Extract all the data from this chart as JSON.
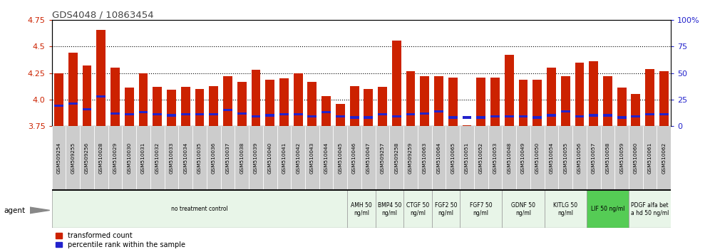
{
  "title": "GDS4048 / 10863454",
  "samples": [
    "GSM509254",
    "GSM509255",
    "GSM509256",
    "GSM510028",
    "GSM510029",
    "GSM510030",
    "GSM510031",
    "GSM510032",
    "GSM510033",
    "GSM510034",
    "GSM510035",
    "GSM510036",
    "GSM510037",
    "GSM510038",
    "GSM510039",
    "GSM510040",
    "GSM510041",
    "GSM510042",
    "GSM510043",
    "GSM510044",
    "GSM510045",
    "GSM510046",
    "GSM510047",
    "GSM509257",
    "GSM509258",
    "GSM509259",
    "GSM510063",
    "GSM510064",
    "GSM510065",
    "GSM510051",
    "GSM510052",
    "GSM510053",
    "GSM510048",
    "GSM510049",
    "GSM510050",
    "GSM510054",
    "GSM510055",
    "GSM510056",
    "GSM510057",
    "GSM510058",
    "GSM510059",
    "GSM510060",
    "GSM510061",
    "GSM510062"
  ],
  "bar_values": [
    4.25,
    4.44,
    4.32,
    4.66,
    4.3,
    4.11,
    4.25,
    4.12,
    4.09,
    4.12,
    4.1,
    4.13,
    4.22,
    4.17,
    4.28,
    4.19,
    4.2,
    4.25,
    4.17,
    4.03,
    3.96,
    4.13,
    4.1,
    4.12,
    4.56,
    4.27,
    4.22,
    4.22,
    4.21,
    3.76,
    4.21,
    4.21,
    4.42,
    4.19,
    4.19,
    4.3,
    4.22,
    4.35,
    4.36,
    4.22,
    4.11,
    4.05,
    4.29,
    4.27
  ],
  "percentile_values": [
    3.94,
    3.96,
    3.91,
    4.03,
    3.87,
    3.86,
    3.88,
    3.86,
    3.85,
    3.86,
    3.86,
    3.86,
    3.9,
    3.87,
    3.84,
    3.85,
    3.86,
    3.86,
    3.84,
    3.88,
    3.84,
    3.83,
    3.83,
    3.86,
    3.84,
    3.86,
    3.87,
    3.89,
    3.83,
    3.83,
    3.83,
    3.84,
    3.84,
    3.84,
    3.83,
    3.85,
    3.89,
    3.84,
    3.85,
    3.85,
    3.83,
    3.84,
    3.86,
    3.86
  ],
  "ymin": 3.75,
  "ymax": 4.75,
  "yticks_left": [
    3.75,
    4.0,
    4.25,
    4.5,
    4.75
  ],
  "right_yticks": [
    0,
    25,
    50,
    75,
    100
  ],
  "bar_color": "#cc2200",
  "percentile_color": "#2222cc",
  "bar_width": 0.65,
  "agent_groups": [
    {
      "label": "no treatment control",
      "start": 0,
      "end": 21,
      "bg": "#e8f5e8"
    },
    {
      "label": "AMH 50\nng/ml",
      "start": 21,
      "end": 23,
      "bg": "#e8f5e8"
    },
    {
      "label": "BMP4 50\nng/ml",
      "start": 23,
      "end": 25,
      "bg": "#e8f5e8"
    },
    {
      "label": "CTGF 50\nng/ml",
      "start": 25,
      "end": 27,
      "bg": "#e8f5e8"
    },
    {
      "label": "FGF2 50\nng/ml",
      "start": 27,
      "end": 29,
      "bg": "#e8f5e8"
    },
    {
      "label": "FGF7 50\nng/ml",
      "start": 29,
      "end": 32,
      "bg": "#e8f5e8"
    },
    {
      "label": "GDNF 50\nng/ml",
      "start": 32,
      "end": 35,
      "bg": "#e8f5e8"
    },
    {
      "label": "KITLG 50\nng/ml",
      "start": 35,
      "end": 38,
      "bg": "#e8f5e8"
    },
    {
      "label": "LIF 50 ng/ml",
      "start": 38,
      "end": 41,
      "bg": "#55cc55"
    },
    {
      "label": "PDGF alfa bet\na hd 50 ng/ml",
      "start": 41,
      "end": 44,
      "bg": "#e8f5e8"
    }
  ],
  "title_color": "#444444",
  "left_axis_color": "#cc2200",
  "right_axis_color": "#2222cc",
  "tick_label_bg": "#cccccc",
  "grid_lines": [
    4.0,
    4.25,
    4.5
  ],
  "background_color": "#ffffff"
}
